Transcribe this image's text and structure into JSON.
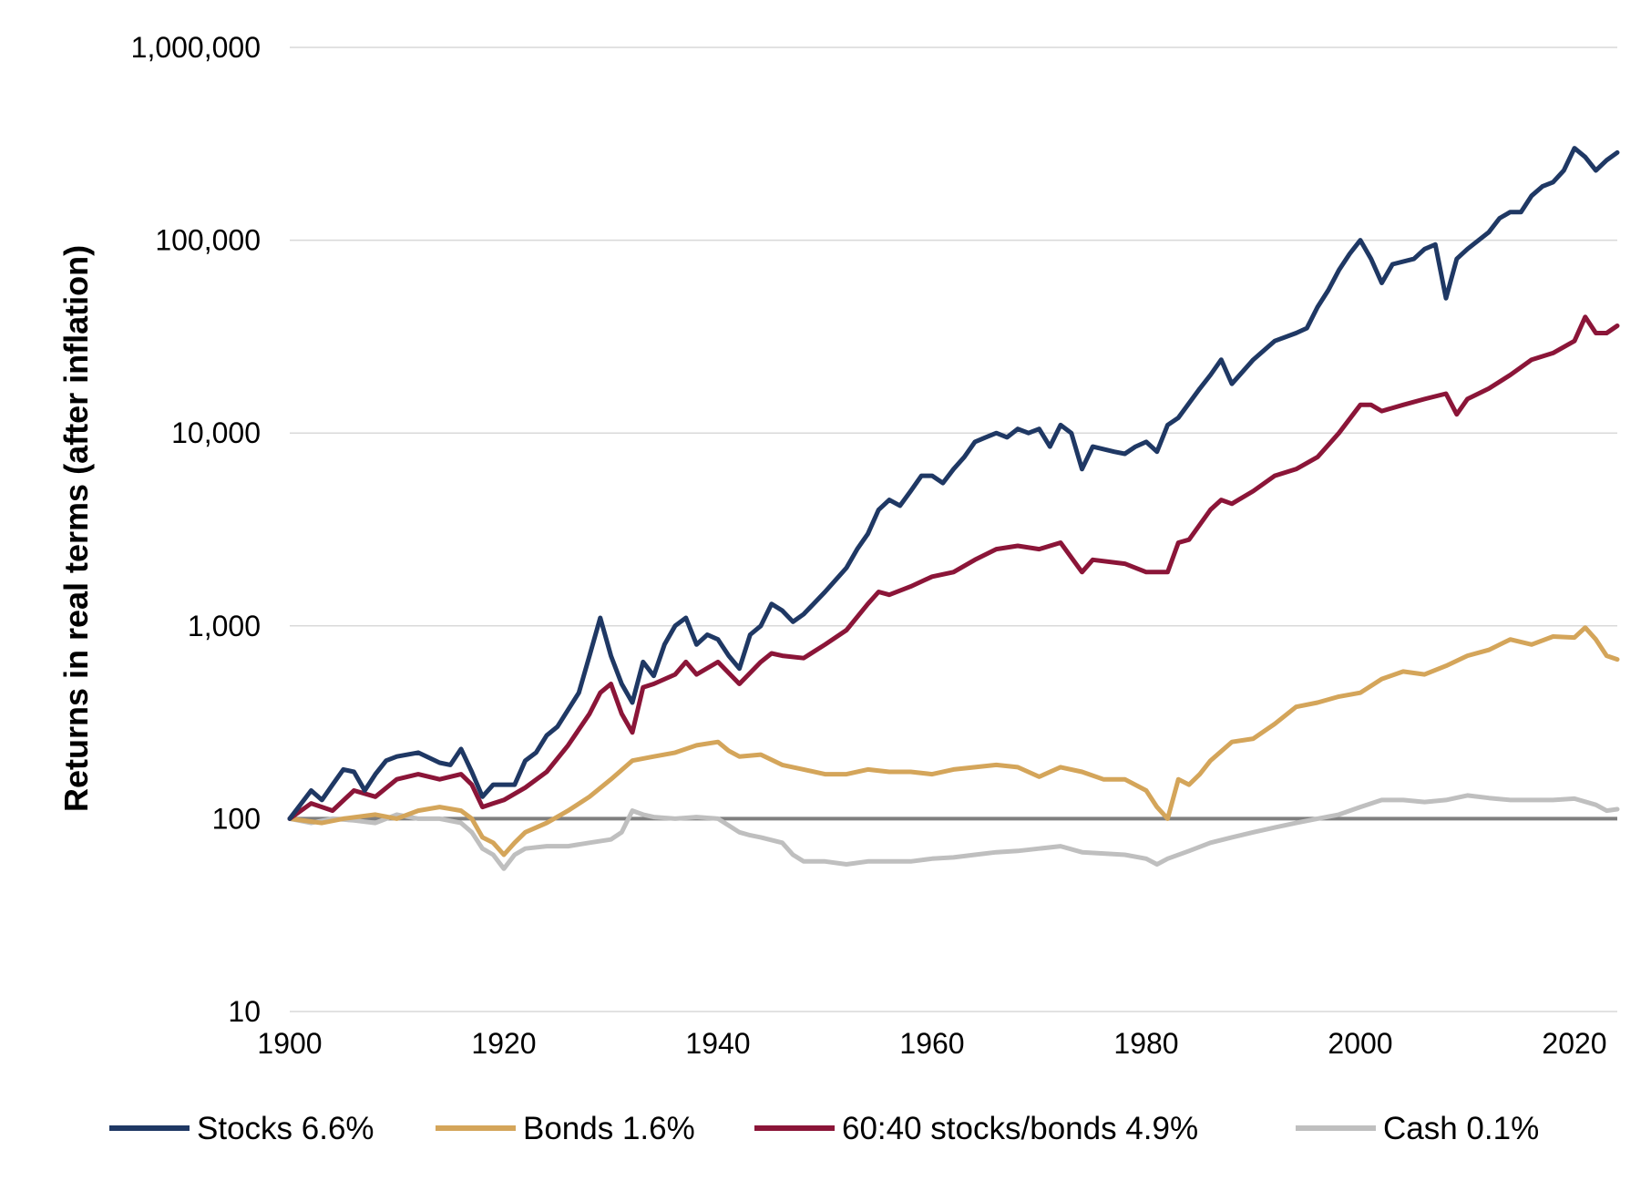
{
  "chart_data": {
    "type": "line",
    "title": "",
    "xlabel": "",
    "ylabel": "Returns in real terms (after inflation)",
    "y_scale": "log",
    "ylim": [
      10,
      1000000
    ],
    "xlim": [
      1900,
      2024
    ],
    "x_ticks": [
      1900,
      1920,
      1940,
      1960,
      1980,
      2000,
      2020
    ],
    "x_tick_labels": [
      "1900",
      "1920",
      "1940",
      "1960",
      "1980",
      "2000",
      "2020"
    ],
    "y_ticks": [
      10,
      100,
      1000,
      10000,
      100000,
      1000000
    ],
    "y_tick_labels": [
      "10",
      "100",
      "1,000",
      "10,000",
      "100,000",
      "1,000,000"
    ],
    "grid": "horizontal",
    "legend_position": "bottom",
    "reference_line": {
      "y": 100,
      "color": "#7f7f7f"
    },
    "series": [
      {
        "name": "Stocks 6.6%",
        "color": "#1f3864",
        "x": [
          1900,
          1902,
          1903,
          1904,
          1905,
          1906,
          1907,
          1908,
          1909,
          1910,
          1912,
          1914,
          1915,
          1916,
          1917,
          1918,
          1919,
          1920,
          1921,
          1922,
          1923,
          1924,
          1925,
          1927,
          1928,
          1929,
          1930,
          1931,
          1932,
          1933,
          1934,
          1935,
          1936,
          1937,
          1938,
          1939,
          1940,
          1941,
          1942,
          1943,
          1944,
          1945,
          1946,
          1947,
          1948,
          1950,
          1952,
          1953,
          1954,
          1955,
          1956,
          1957,
          1958,
          1959,
          1960,
          1961,
          1962,
          1963,
          1964,
          1965,
          1966,
          1967,
          1968,
          1969,
          1970,
          1971,
          1972,
          1973,
          1974,
          1975,
          1977,
          1978,
          1979,
          1980,
          1981,
          1982,
          1983,
          1985,
          1986,
          1987,
          1988,
          1990,
          1992,
          1994,
          1995,
          1996,
          1997,
          1998,
          1999,
          2000,
          2001,
          2002,
          2003,
          2005,
          2006,
          2007,
          2008,
          2009,
          2010,
          2012,
          2013,
          2014,
          2015,
          2016,
          2017,
          2018,
          2019,
          2020,
          2021,
          2022,
          2023,
          2024
        ],
        "y": [
          100,
          140,
          125,
          150,
          180,
          175,
          140,
          170,
          200,
          210,
          220,
          195,
          190,
          230,
          175,
          130,
          150,
          150,
          150,
          200,
          220,
          270,
          300,
          450,
          700,
          1100,
          700,
          500,
          400,
          650,
          550,
          800,
          1000,
          1100,
          800,
          900,
          850,
          700,
          600,
          900,
          1000,
          1300,
          1200,
          1050,
          1150,
          1500,
          2000,
          2500,
          3000,
          4000,
          4500,
          4200,
          5000,
          6000,
          6000,
          5500,
          6500,
          7500,
          9000,
          9500,
          10000,
          9500,
          10500,
          10000,
          10500,
          8500,
          11000,
          10000,
          6500,
          8500,
          8000,
          7800,
          8500,
          9000,
          8000,
          11000,
          12000,
          17000,
          20000,
          24000,
          18000,
          24000,
          30000,
          33000,
          35000,
          45000,
          55000,
          70000,
          85000,
          100000,
          80000,
          60000,
          75000,
          80000,
          90000,
          95000,
          50000,
          80000,
          90000,
          110000,
          130000,
          140000,
          140000,
          170000,
          190000,
          200000,
          230000,
          300000,
          270000,
          230000,
          260000,
          285000
        ]
      },
      {
        "name": "Bonds 1.6%",
        "color": "#d4a55a",
        "x": [
          1900,
          1903,
          1905,
          1908,
          1910,
          1912,
          1914,
          1916,
          1917,
          1918,
          1919,
          1920,
          1921,
          1922,
          1924,
          1926,
          1928,
          1930,
          1932,
          1934,
          1936,
          1938,
          1940,
          1941,
          1942,
          1944,
          1946,
          1948,
          1950,
          1952,
          1954,
          1956,
          1958,
          1960,
          1962,
          1964,
          1966,
          1968,
          1970,
          1972,
          1974,
          1976,
          1978,
          1980,
          1981,
          1982,
          1983,
          1984,
          1985,
          1986,
          1988,
          1990,
          1992,
          1994,
          1996,
          1998,
          2000,
          2002,
          2004,
          2006,
          2008,
          2010,
          2012,
          2014,
          2016,
          2018,
          2020,
          2021,
          2022,
          2023,
          2024
        ],
        "y": [
          100,
          95,
          100,
          105,
          100,
          110,
          115,
          110,
          100,
          80,
          75,
          65,
          75,
          85,
          95,
          110,
          130,
          160,
          200,
          210,
          220,
          240,
          250,
          225,
          210,
          215,
          190,
          180,
          170,
          170,
          180,
          175,
          175,
          170,
          180,
          185,
          190,
          185,
          165,
          185,
          175,
          160,
          160,
          140,
          115,
          100,
          160,
          150,
          170,
          200,
          250,
          260,
          310,
          380,
          400,
          430,
          450,
          530,
          580,
          560,
          620,
          700,
          750,
          850,
          800,
          880,
          870,
          980,
          850,
          700,
          670
        ]
      },
      {
        "name": "60:40 stocks/bonds 4.9%",
        "color": "#8b1538",
        "x": [
          1900,
          1902,
          1904,
          1906,
          1908,
          1910,
          1912,
          1914,
          1916,
          1917,
          1918,
          1919,
          1920,
          1922,
          1924,
          1926,
          1928,
          1929,
          1930,
          1931,
          1932,
          1933,
          1934,
          1936,
          1937,
          1938,
          1940,
          1942,
          1944,
          1945,
          1946,
          1948,
          1950,
          1952,
          1954,
          1955,
          1956,
          1958,
          1960,
          1962,
          1964,
          1966,
          1968,
          1970,
          1972,
          1974,
          1975,
          1978,
          1980,
          1982,
          1983,
          1984,
          1986,
          1987,
          1988,
          1990,
          1992,
          1994,
          1996,
          1998,
          2000,
          2001,
          2002,
          2004,
          2006,
          2008,
          2009,
          2010,
          2012,
          2014,
          2016,
          2018,
          2020,
          2021,
          2022,
          2023,
          2024
        ],
        "y": [
          100,
          120,
          110,
          140,
          130,
          160,
          170,
          160,
          170,
          150,
          115,
          120,
          125,
          145,
          175,
          240,
          350,
          450,
          500,
          350,
          280,
          480,
          500,
          560,
          650,
          560,
          650,
          500,
          650,
          720,
          700,
          680,
          800,
          950,
          1300,
          1500,
          1450,
          1600,
          1800,
          1900,
          2200,
          2500,
          2600,
          2500,
          2700,
          1900,
          2200,
          2100,
          1900,
          1900,
          2700,
          2800,
          4000,
          4500,
          4300,
          5000,
          6000,
          6500,
          7500,
          10000,
          14000,
          14000,
          13000,
          14000,
          15000,
          16000,
          12500,
          15000,
          17000,
          20000,
          24000,
          26000,
          30000,
          40000,
          33000,
          33000,
          36000
        ]
      },
      {
        "name": "Cash 0.1%",
        "color": "#bfbfbf",
        "x": [
          1900,
          1902,
          1904,
          1906,
          1908,
          1910,
          1912,
          1914,
          1916,
          1917,
          1918,
          1919,
          1920,
          1921,
          1922,
          1924,
          1926,
          1928,
          1930,
          1931,
          1932,
          1933,
          1934,
          1936,
          1938,
          1940,
          1942,
          1943,
          1944,
          1946,
          1947,
          1948,
          1950,
          1952,
          1954,
          1956,
          1958,
          1960,
          1962,
          1964,
          1966,
          1968,
          1970,
          1972,
          1974,
          1976,
          1978,
          1980,
          1981,
          1982,
          1984,
          1986,
          1988,
          1990,
          1992,
          1994,
          1996,
          1998,
          2000,
          2002,
          2004,
          2006,
          2008,
          2010,
          2012,
          2014,
          2016,
          2018,
          2020,
          2022,
          2023,
          2024
        ],
        "y": [
          100,
          95,
          100,
          98,
          95,
          105,
          100,
          100,
          95,
          85,
          70,
          65,
          55,
          65,
          70,
          72,
          72,
          75,
          78,
          85,
          110,
          105,
          102,
          100,
          102,
          100,
          85,
          82,
          80,
          75,
          65,
          60,
          60,
          58,
          60,
          60,
          60,
          62,
          63,
          65,
          67,
          68,
          70,
          72,
          67,
          66,
          65,
          62,
          58,
          62,
          68,
          75,
          80,
          85,
          90,
          95,
          100,
          105,
          115,
          125,
          125,
          122,
          125,
          132,
          128,
          125,
          125,
          125,
          127,
          118,
          110,
          112
        ]
      }
    ]
  }
}
